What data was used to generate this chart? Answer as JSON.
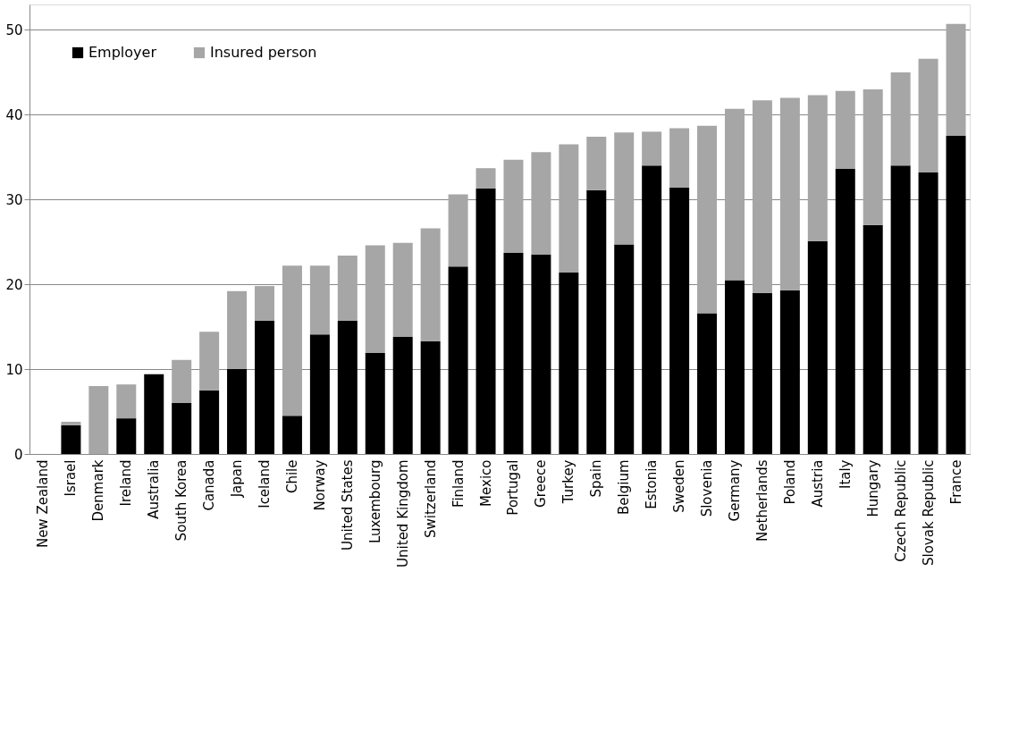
{
  "chart_data": {
    "type": "bar",
    "stacked": true,
    "categories": [
      "New Zealand",
      "Israel",
      "Denmark",
      "Ireland",
      "Australia",
      "South Korea",
      "Canada",
      "Japan",
      "Iceland",
      "Chile",
      "Norway",
      "United States",
      "Luxembourg",
      "United Kingdom",
      "Switzerland",
      "Finland",
      "Mexico",
      "Portugal",
      "Greece",
      "Turkey",
      "Spain",
      "Belgium",
      "Estonia",
      "Sweden",
      "Slovenia",
      "Germany",
      "Netherlands",
      "Poland",
      "Austria",
      "Italy",
      "Hungary",
      "Czech Republic",
      "Slovak Republic",
      "France"
    ],
    "series": [
      {
        "name": "Employer",
        "color": "#000000",
        "values": [
          0,
          3.4,
          0,
          4.2,
          9.4,
          6.0,
          7.5,
          10.0,
          15.7,
          4.5,
          14.1,
          15.7,
          11.9,
          13.8,
          13.3,
          22.1,
          31.3,
          23.7,
          23.5,
          21.4,
          31.1,
          24.7,
          34.0,
          31.4,
          16.6,
          20.5,
          19.0,
          19.3,
          25.1,
          33.6,
          27.0,
          34.0,
          33.2,
          37.5
        ]
      },
      {
        "name": "Insured person",
        "color": "#a6a6a6",
        "values": [
          0,
          0.4,
          8.0,
          4.0,
          0,
          5.1,
          6.9,
          9.2,
          4.1,
          17.7,
          8.1,
          7.7,
          12.7,
          11.1,
          13.3,
          8.5,
          2.4,
          11.0,
          12.1,
          15.1,
          6.3,
          13.2,
          4.0,
          7.0,
          22.1,
          20.2,
          22.7,
          22.7,
          17.2,
          9.2,
          16.0,
          11.0,
          13.4,
          13.2
        ]
      }
    ],
    "ylim": [
      0,
      53
    ],
    "yticks": [
      0,
      10,
      20,
      30,
      40,
      50
    ],
    "grid": "y",
    "legend": "top left"
  }
}
